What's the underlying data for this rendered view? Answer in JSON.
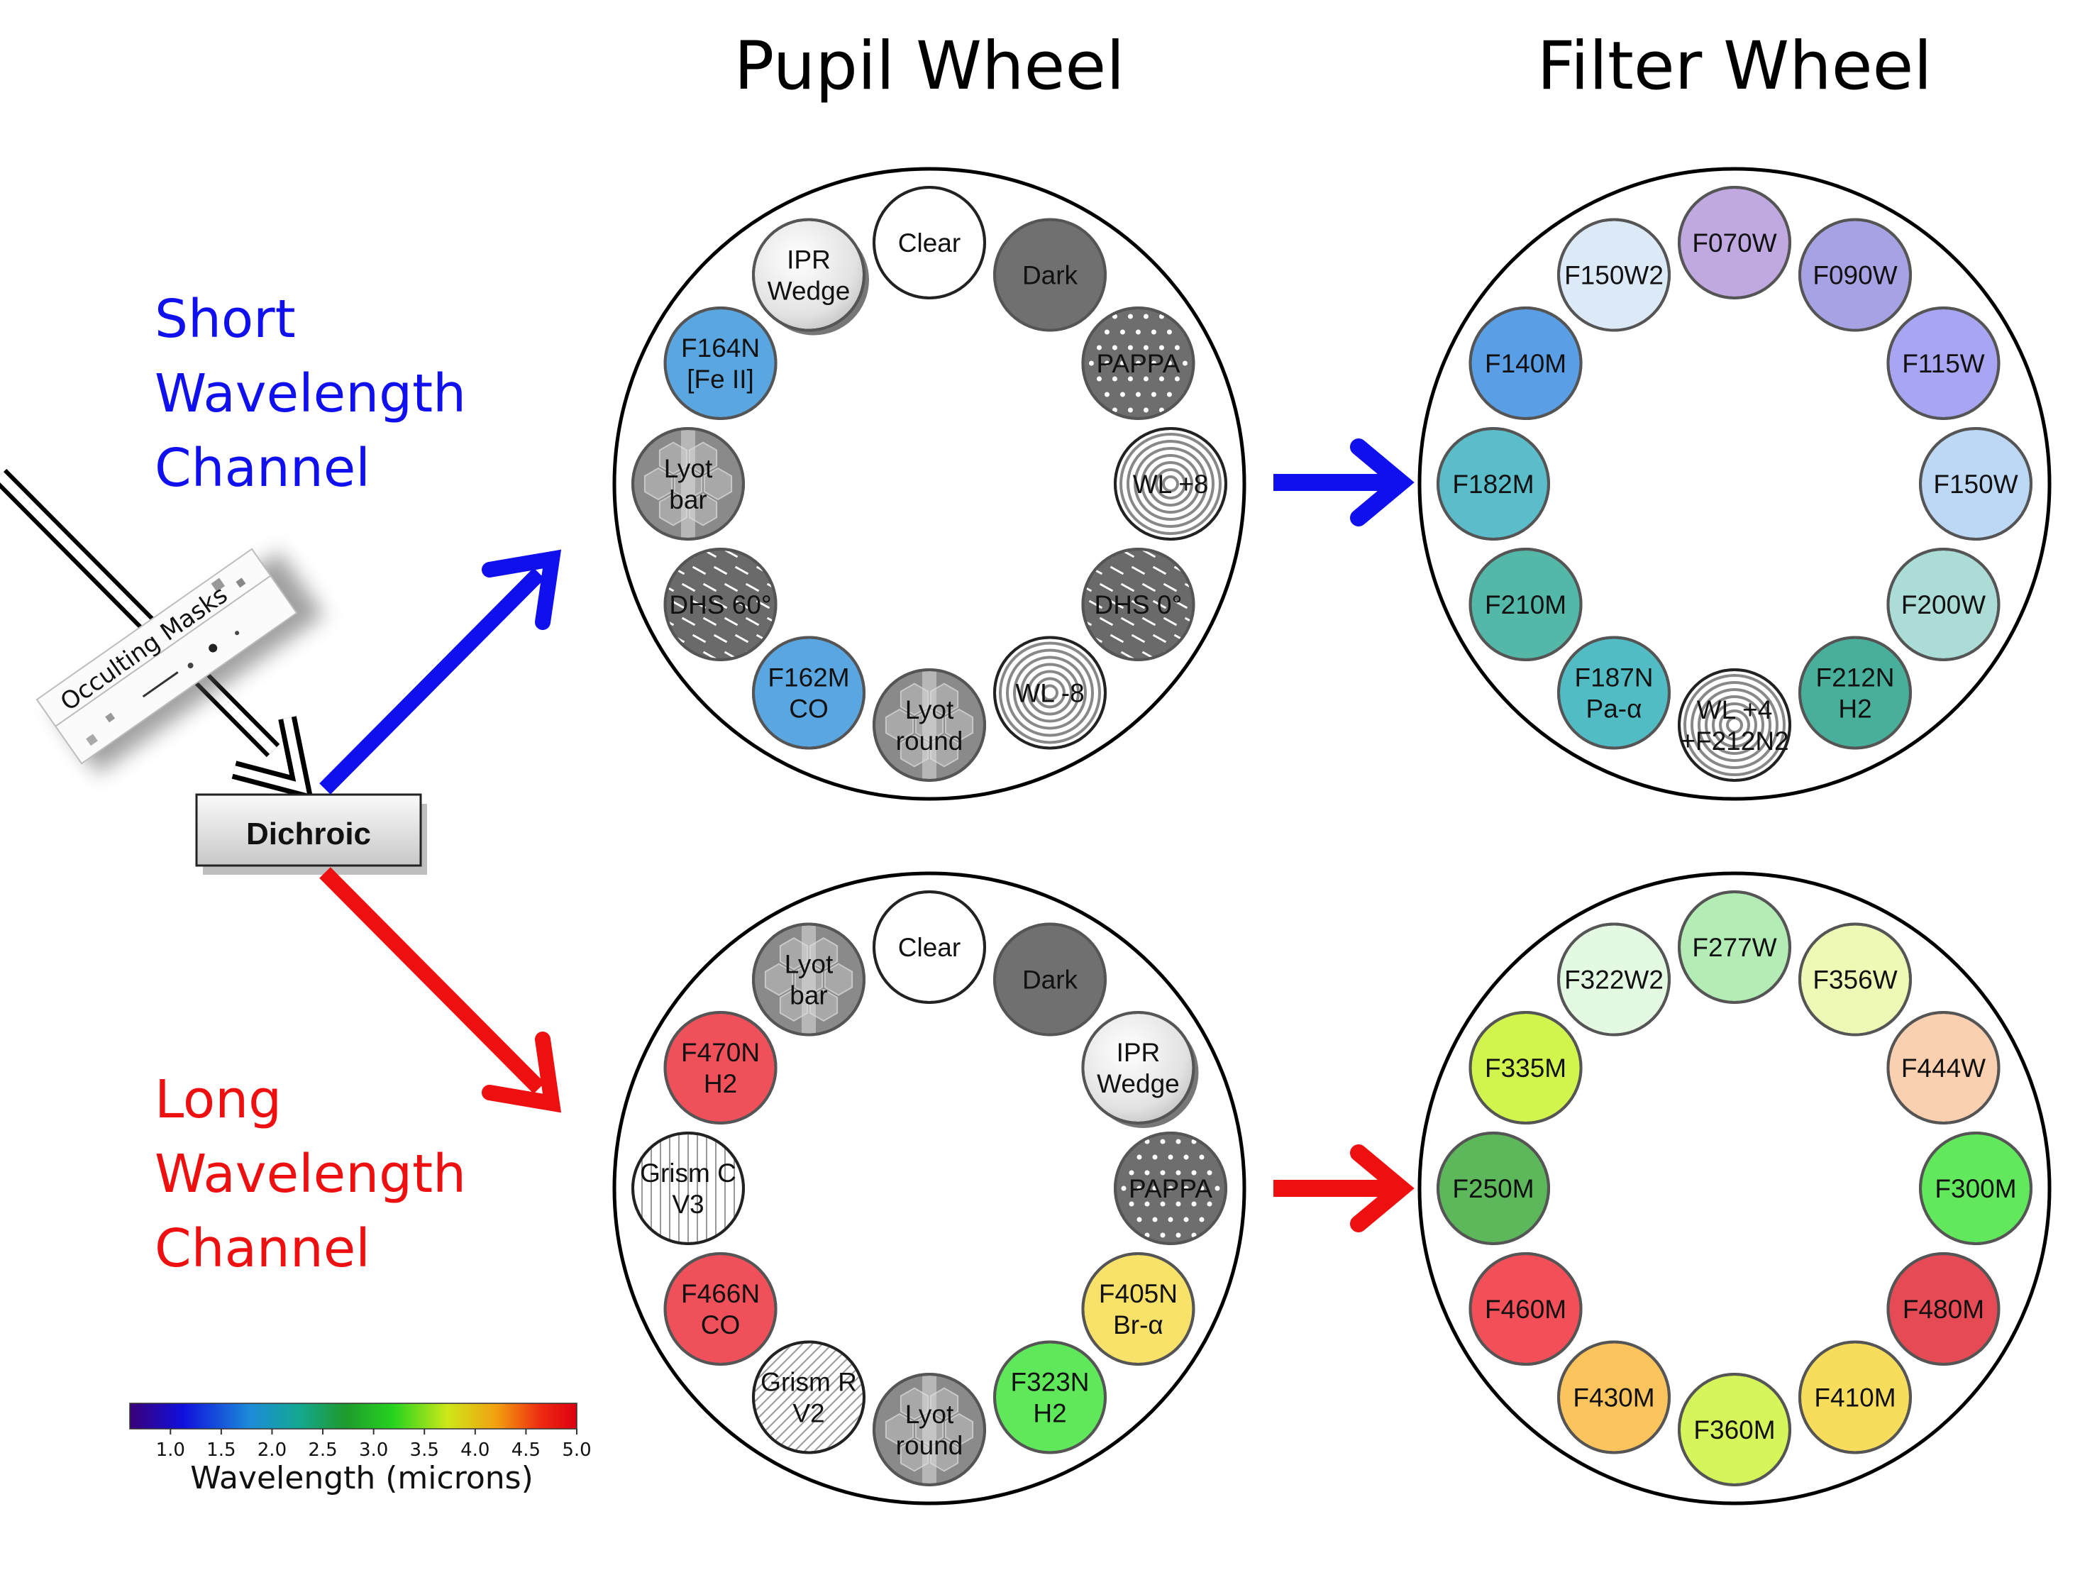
{
  "titles": {
    "pupil": "Pupil Wheel",
    "filter": "Filter Wheel"
  },
  "channels": {
    "short": {
      "lines": [
        "Short",
        "Wavelength",
        "Channel"
      ],
      "color": "#1010ee"
    },
    "long": {
      "lines": [
        "Long",
        "Wavelength",
        "Channel"
      ],
      "color": "#ee1010"
    }
  },
  "dichroic_label": "Dichroic",
  "occulting_label": "Occulting Masks",
  "colorbar": {
    "ticks": [
      "1.0",
      "1.5",
      "2.0",
      "2.5",
      "3.0",
      "3.5",
      "4.0",
      "4.5",
      "5.0"
    ],
    "label": "Wavelength (microns)",
    "min": 0.6,
    "max": 5.0
  },
  "wheels": {
    "sw_pupil": [
      {
        "lines": [
          "Clear"
        ],
        "fill": "#ffffff",
        "pattern": "none"
      },
      {
        "lines": [
          "Dark"
        ],
        "fill": "#707070",
        "pattern": "none"
      },
      {
        "lines": [
          "PAPPA"
        ],
        "fill": "#6e6e6e",
        "pattern": "dots"
      },
      {
        "lines": [
          "WL +8"
        ],
        "fill": "#ffffff",
        "pattern": "rings"
      },
      {
        "lines": [
          "DHS 0°"
        ],
        "fill": "#6a6a6a",
        "pattern": "dashes"
      },
      {
        "lines": [
          "WL -8"
        ],
        "fill": "#ffffff",
        "pattern": "rings"
      },
      {
        "lines": [
          "Lyot",
          "round"
        ],
        "fill": "#8a8a8a",
        "pattern": "lyot"
      },
      {
        "lines": [
          "F162M",
          "CO"
        ],
        "fill": "#5aa6e0",
        "pattern": "none"
      },
      {
        "lines": [
          "DHS 60°"
        ],
        "fill": "#6a6a6a",
        "pattern": "dashes"
      },
      {
        "lines": [
          "Lyot",
          "bar"
        ],
        "fill": "#8a8a8a",
        "pattern": "lyot"
      },
      {
        "lines": [
          "F164N",
          "[Fe II]"
        ],
        "fill": "#5aa6e0",
        "pattern": "none"
      },
      {
        "lines": [
          "IPR",
          "Wedge"
        ],
        "fill": "#f2f2f2",
        "pattern": "wedge"
      }
    ],
    "sw_filter": [
      {
        "lines": [
          "F070W"
        ],
        "fill": "#c0a8e0",
        "pattern": "none"
      },
      {
        "lines": [
          "F090W"
        ],
        "fill": "#a7a2e4",
        "pattern": "none"
      },
      {
        "lines": [
          "F115W"
        ],
        "fill": "#a8a6f2",
        "pattern": "none"
      },
      {
        "lines": [
          "F150W"
        ],
        "fill": "#bcd8f4",
        "pattern": "none"
      },
      {
        "lines": [
          "F200W"
        ],
        "fill": "#abdcd6",
        "pattern": "none"
      },
      {
        "lines": [
          "F212N",
          "H2"
        ],
        "fill": "#48b09a",
        "pattern": "none"
      },
      {
        "lines": [
          "WL +4",
          "+F212N2"
        ],
        "fill": "#ffffff",
        "pattern": "rings"
      },
      {
        "lines": [
          "F187N",
          "Pa-α"
        ],
        "fill": "#52bcc4",
        "pattern": "none"
      },
      {
        "lines": [
          "F210M"
        ],
        "fill": "#54b8a8",
        "pattern": "none"
      },
      {
        "lines": [
          "F182M"
        ],
        "fill": "#5bbcca",
        "pattern": "none"
      },
      {
        "lines": [
          "F140M"
        ],
        "fill": "#5a9ee6",
        "pattern": "none"
      },
      {
        "lines": [
          "F150W2"
        ],
        "fill": "#dce9f7",
        "pattern": "none"
      }
    ],
    "lw_pupil": [
      {
        "lines": [
          "Clear"
        ],
        "fill": "#ffffff",
        "pattern": "none"
      },
      {
        "lines": [
          "Dark"
        ],
        "fill": "#707070",
        "pattern": "none"
      },
      {
        "lines": [
          "IPR",
          "Wedge"
        ],
        "fill": "#f2f2f2",
        "pattern": "wedge"
      },
      {
        "lines": [
          "PAPPA"
        ],
        "fill": "#6e6e6e",
        "pattern": "dots"
      },
      {
        "lines": [
          "F405N",
          "Br-α"
        ],
        "fill": "#f8e26a",
        "pattern": "none"
      },
      {
        "lines": [
          "F323N",
          "H2"
        ],
        "fill": "#5fe85a",
        "pattern": "none"
      },
      {
        "lines": [
          "Lyot",
          "round"
        ],
        "fill": "#8a8a8a",
        "pattern": "lyot"
      },
      {
        "lines": [
          "Grism R",
          "V2"
        ],
        "fill": "#ffffff",
        "pattern": "diag"
      },
      {
        "lines": [
          "F466N",
          "CO"
        ],
        "fill": "#f0505a",
        "pattern": "none"
      },
      {
        "lines": [
          "Grism C",
          "V3"
        ],
        "fill": "#ffffff",
        "pattern": "vert"
      },
      {
        "lines": [
          "F470N",
          "H2"
        ],
        "fill": "#f0505a",
        "pattern": "none"
      },
      {
        "lines": [
          "Lyot",
          "bar"
        ],
        "fill": "#8a8a8a",
        "pattern": "lyot"
      }
    ],
    "lw_filter": [
      {
        "lines": [
          "F277W"
        ],
        "fill": "#b3ecb5",
        "pattern": "none"
      },
      {
        "lines": [
          "F356W"
        ],
        "fill": "#eef9b5",
        "pattern": "none"
      },
      {
        "lines": [
          "F444W"
        ],
        "fill": "#fbd0b0",
        "pattern": "none"
      },
      {
        "lines": [
          "F300M"
        ],
        "fill": "#62e85c",
        "pattern": "none"
      },
      {
        "lines": [
          "F480M"
        ],
        "fill": "#e64a55",
        "pattern": "none"
      },
      {
        "lines": [
          "F410M"
        ],
        "fill": "#f8dc5c",
        "pattern": "none"
      },
      {
        "lines": [
          "F360M"
        ],
        "fill": "#d6f55a",
        "pattern": "none"
      },
      {
        "lines": [
          "F430M"
        ],
        "fill": "#fcc45c",
        "pattern": "none"
      },
      {
        "lines": [
          "F460M"
        ],
        "fill": "#f24f58",
        "pattern": "none"
      },
      {
        "lines": [
          "F250M"
        ],
        "fill": "#5cb85a",
        "pattern": "none"
      },
      {
        "lines": [
          "F335M"
        ],
        "fill": "#d2f54e",
        "pattern": "none"
      },
      {
        "lines": [
          "F322W2"
        ],
        "fill": "#e4f9e2",
        "pattern": "none"
      }
    ]
  }
}
